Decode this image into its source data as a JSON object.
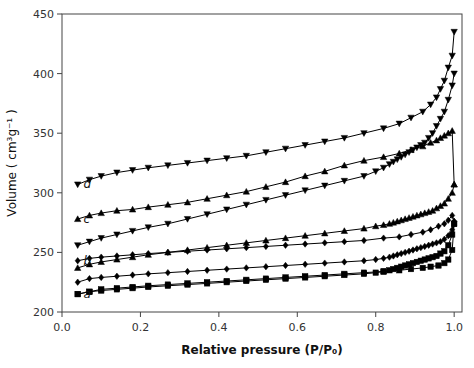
{
  "chart_data": {
    "type": "line",
    "xlabel": "Relative pressure (P/P₀)",
    "ylabel": "Volume ( cm³g⁻¹ )",
    "xlim": [
      0.0,
      1.02
    ],
    "ylim": [
      200,
      450
    ],
    "xticks": [
      {
        "value": 0.0,
        "label": "0.0"
      },
      0.2,
      0.4,
      0.6,
      0.8,
      {
        "value": 1.0,
        "label": "1.0"
      }
    ],
    "yticks": [
      200,
      250,
      300,
      350,
      400,
      450
    ],
    "grid": false,
    "color": "#000000",
    "annotations": [
      {
        "text": "a",
        "x": 0.055,
        "y": 215
      },
      {
        "text": "b",
        "x": 0.055,
        "y": 243
      },
      {
        "text": "c",
        "x": 0.055,
        "y": 278
      },
      {
        "text": "d",
        "x": 0.055,
        "y": 307
      }
    ],
    "series": [
      {
        "marker": "square",
        "x": [
          0.04,
          0.07,
          0.1,
          0.14,
          0.18,
          0.22,
          0.27,
          0.32,
          0.37,
          0.42,
          0.47,
          0.52,
          0.57,
          0.62,
          0.67,
          0.72,
          0.77,
          0.82,
          0.86,
          0.89,
          0.92,
          0.94,
          0.96,
          0.975,
          0.985,
          0.995,
          1.0
        ],
        "values": [
          215,
          217,
          219,
          220,
          221,
          222,
          223,
          224,
          225,
          226,
          227,
          228,
          229,
          230,
          231,
          232,
          233,
          234,
          235,
          236,
          237,
          238,
          239,
          241,
          244,
          252,
          274
        ]
      },
      {
        "marker": "square",
        "x": [
          1.0,
          0.995,
          0.985,
          0.975,
          0.965,
          0.955,
          0.945,
          0.935,
          0.925,
          0.915,
          0.905,
          0.895,
          0.885,
          0.875,
          0.865,
          0.855,
          0.845,
          0.835,
          0.82,
          0.8,
          0.77,
          0.72,
          0.67,
          0.62,
          0.57,
          0.52,
          0.47,
          0.42,
          0.37,
          0.32,
          0.27,
          0.22,
          0.18,
          0.14,
          0.1,
          0.07,
          0.04
        ],
        "values": [
          274,
          265,
          256,
          251,
          249,
          247,
          246,
          245,
          244,
          243,
          242,
          241,
          240,
          239,
          238,
          237,
          236,
          235,
          234,
          233,
          232,
          231,
          230,
          229,
          228,
          227,
          226,
          225,
          224,
          223,
          222,
          221,
          220,
          219,
          218,
          217,
          215
        ]
      },
      {
        "marker": "diamond",
        "x": [
          0.04,
          0.07,
          0.1,
          0.14,
          0.18,
          0.22,
          0.27,
          0.32,
          0.37,
          0.42,
          0.47,
          0.52,
          0.57,
          0.62,
          0.67,
          0.72,
          0.77,
          0.82,
          0.86,
          0.89,
          0.92,
          0.94,
          0.96,
          0.975,
          0.985,
          0.995,
          1.0
        ],
        "values": [
          243,
          245,
          246,
          247,
          248,
          249,
          250,
          251,
          252,
          253,
          254,
          255,
          256,
          257,
          258,
          259,
          260,
          262,
          263,
          265,
          267,
          269,
          272,
          274,
          277,
          281,
          276
        ]
      },
      {
        "marker": "diamond",
        "x": [
          1.0,
          0.995,
          0.985,
          0.975,
          0.965,
          0.955,
          0.945,
          0.935,
          0.925,
          0.915,
          0.905,
          0.895,
          0.885,
          0.875,
          0.865,
          0.855,
          0.845,
          0.835,
          0.82,
          0.8,
          0.77,
          0.72,
          0.67,
          0.62,
          0.57,
          0.52,
          0.47,
          0.42,
          0.37,
          0.32,
          0.27,
          0.22,
          0.18,
          0.14,
          0.1,
          0.07,
          0.04
        ],
        "values": [
          276,
          269,
          264,
          261,
          259,
          258,
          257,
          256,
          255,
          254,
          253,
          252,
          251,
          250,
          249,
          248,
          247,
          246,
          245,
          244,
          243,
          242,
          241,
          240,
          239,
          238,
          237,
          236,
          235,
          234,
          233,
          232,
          231,
          230,
          229,
          228,
          225
        ]
      },
      {
        "marker": "triangle-up",
        "x": [
          0.04,
          0.07,
          0.1,
          0.14,
          0.18,
          0.22,
          0.27,
          0.32,
          0.37,
          0.42,
          0.47,
          0.52,
          0.57,
          0.62,
          0.67,
          0.72,
          0.77,
          0.82,
          0.86,
          0.89,
          0.92,
          0.94,
          0.955,
          0.965,
          0.975,
          0.985,
          0.995,
          1.0
        ],
        "values": [
          278,
          281,
          283,
          285,
          286,
          288,
          290,
          292,
          295,
          298,
          301,
          305,
          309,
          314,
          318,
          323,
          327,
          330,
          333,
          336,
          339,
          342,
          344,
          346,
          348,
          350,
          352,
          307
        ]
      },
      {
        "marker": "triangle-up",
        "x": [
          1.0,
          0.995,
          0.985,
          0.975,
          0.965,
          0.955,
          0.945,
          0.935,
          0.925,
          0.915,
          0.905,
          0.895,
          0.885,
          0.875,
          0.865,
          0.855,
          0.845,
          0.835,
          0.82,
          0.8,
          0.77,
          0.72,
          0.67,
          0.62,
          0.57,
          0.52,
          0.47,
          0.42,
          0.37,
          0.32,
          0.27,
          0.22,
          0.18,
          0.14,
          0.1,
          0.07,
          0.04
        ],
        "values": [
          307,
          300,
          295,
          291,
          289,
          287,
          285,
          284,
          283,
          282,
          281,
          280,
          279,
          278,
          277,
          276,
          275,
          274,
          273,
          272,
          270,
          268,
          266,
          264,
          262,
          260,
          258,
          256,
          254,
          252,
          250,
          248,
          246,
          244,
          242,
          240,
          237
        ]
      },
      {
        "marker": "triangle-down",
        "x": [
          0.04,
          0.07,
          0.1,
          0.14,
          0.18,
          0.22,
          0.27,
          0.32,
          0.37,
          0.42,
          0.47,
          0.52,
          0.57,
          0.62,
          0.67,
          0.72,
          0.77,
          0.82,
          0.86,
          0.89,
          0.92,
          0.94,
          0.955,
          0.965,
          0.975,
          0.985,
          0.995,
          1.0
        ],
        "values": [
          307,
          311,
          314,
          317,
          319,
          321,
          323,
          325,
          327,
          329,
          331,
          334,
          337,
          340,
          343,
          346,
          350,
          354,
          358,
          363,
          368,
          374,
          380,
          387,
          394,
          405,
          415,
          435
        ]
      },
      {
        "marker": "triangle-down",
        "x": [
          1.0,
          0.995,
          0.985,
          0.975,
          0.965,
          0.955,
          0.945,
          0.935,
          0.925,
          0.915,
          0.905,
          0.895,
          0.885,
          0.875,
          0.865,
          0.855,
          0.845,
          0.835,
          0.82,
          0.8,
          0.77,
          0.72,
          0.67,
          0.62,
          0.57,
          0.52,
          0.47,
          0.42,
          0.37,
          0.32,
          0.27,
          0.22,
          0.18,
          0.14,
          0.1,
          0.07,
          0.04
        ],
        "values": [
          400,
          390,
          378,
          368,
          362,
          356,
          350,
          346,
          342,
          340,
          338,
          336,
          334,
          332,
          330,
          328,
          326,
          324,
          321,
          318,
          314,
          310,
          306,
          302,
          298,
          294,
          290,
          286,
          282,
          278,
          274,
          271,
          268,
          265,
          262,
          259,
          256
        ]
      }
    ]
  }
}
